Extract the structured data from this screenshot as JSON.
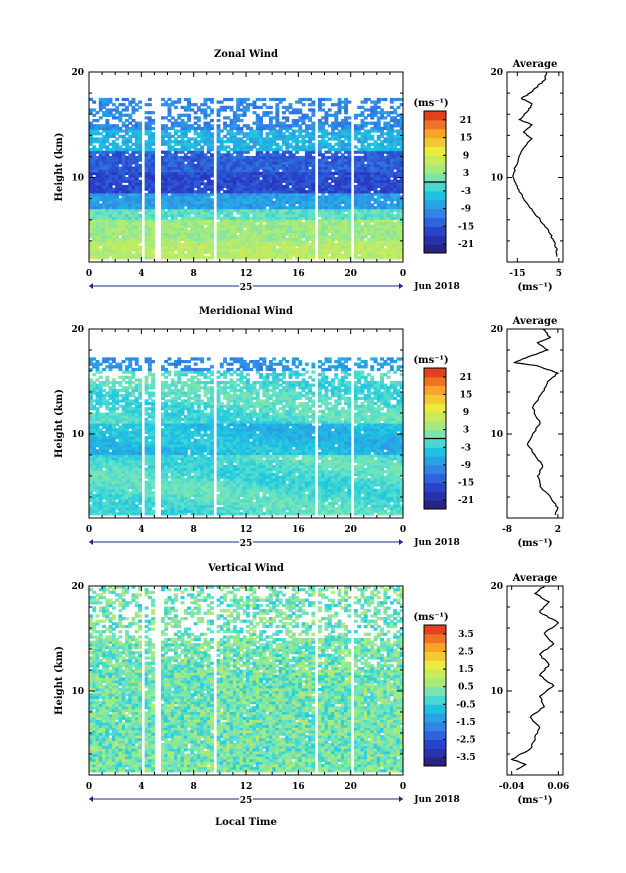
{
  "chart_data": [
    {
      "type": "heatmap",
      "title": "Zonal Wind",
      "ylabel": "Height (km)",
      "xlim": [
        0,
        24
      ],
      "ylim": [
        2,
        20
      ],
      "x_ticks": [
        "0",
        "4",
        "8",
        "12",
        "16",
        "20",
        "0"
      ],
      "y_ticks": [
        "10",
        "20"
      ],
      "date_day": "25",
      "date_month": "Jun 2018",
      "colorbar": {
        "unit": "(ms⁻¹)",
        "ticks": [
          "21",
          "15",
          "9",
          "3",
          "-3",
          "-9",
          "-15",
          "-21"
        ],
        "range": [
          -24,
          24
        ],
        "marker": 0
      },
      "average": {
        "title": "Average",
        "xlabel": "(ms⁻¹)",
        "x_ticks": [
          "-15",
          "5"
        ],
        "xlim": [
          -20,
          7
        ],
        "profile": [
          [
            4.0,
            2.5
          ],
          [
            4.0,
            3.3
          ],
          [
            2.5,
            4.0
          ],
          [
            0.0,
            5.0
          ],
          [
            -4.0,
            6.0
          ],
          [
            -8.0,
            7.0
          ],
          [
            -12.0,
            8.0
          ],
          [
            -15.0,
            9.0
          ],
          [
            -17.0,
            10.0
          ],
          [
            -16.0,
            11.0
          ],
          [
            -13.0,
            12.5
          ],
          [
            -8.0,
            13.7
          ],
          [
            -12.0,
            14.3
          ],
          [
            -8.0,
            15.0
          ],
          [
            -14.0,
            15.5
          ],
          [
            -10.0,
            16.3
          ],
          [
            -8.0,
            17.0
          ],
          [
            -13.0,
            17.5
          ],
          [
            -9.0,
            18.0
          ],
          [
            -6.0,
            18.5
          ],
          [
            -2.0,
            19.2
          ],
          [
            -1.0,
            20.0
          ]
        ]
      },
      "field": "zonal"
    },
    {
      "type": "heatmap",
      "title": "Meridional Wind",
      "ylabel": "Height (km)",
      "xlim": [
        0,
        24
      ],
      "ylim": [
        2,
        20
      ],
      "x_ticks": [
        "0",
        "4",
        "8",
        "12",
        "16",
        "20",
        "0"
      ],
      "y_ticks": [
        "10",
        "20"
      ],
      "date_day": "25",
      "date_month": "Jun 2018",
      "colorbar": {
        "unit": "(ms⁻¹)",
        "ticks": [
          "21",
          "15",
          "9",
          "3",
          "-3",
          "-9",
          "-15",
          "-21"
        ],
        "range": [
          -24,
          24
        ],
        "marker": 0
      },
      "average": {
        "title": "Average",
        "xlabel": "(ms⁻¹)",
        "x_ticks": [
          "-8",
          "2"
        ],
        "xlim": [
          -8,
          3
        ],
        "profile": [
          [
            1.5,
            2.3
          ],
          [
            2.0,
            3.0
          ],
          [
            0.5,
            4.0
          ],
          [
            -1.5,
            5.0
          ],
          [
            -2.0,
            6.0
          ],
          [
            -1.0,
            7.0
          ],
          [
            -2.5,
            8.0
          ],
          [
            -4.0,
            9.0
          ],
          [
            -3.0,
            10.0
          ],
          [
            -1.5,
            11.0
          ],
          [
            -3.0,
            12.5
          ],
          [
            -1.0,
            14.0
          ],
          [
            0.0,
            15.0
          ],
          [
            2.0,
            15.8
          ],
          [
            -2.0,
            16.5
          ],
          [
            -6.5,
            16.8
          ],
          [
            -3.0,
            17.5
          ],
          [
            0.0,
            18.0
          ],
          [
            -2.0,
            18.7
          ],
          [
            0.5,
            19.2
          ],
          [
            -1.0,
            20.0
          ]
        ]
      },
      "field": "meridional"
    },
    {
      "type": "heatmap",
      "title": "Vertical Wind",
      "ylabel": "Height (km)",
      "xlabel": "Local Time",
      "xlim": [
        0,
        24
      ],
      "ylim": [
        2,
        20
      ],
      "x_ticks": [
        "0",
        "4",
        "8",
        "12",
        "16",
        "20",
        "0"
      ],
      "y_ticks": [
        "10",
        "20"
      ],
      "date_day": "25",
      "date_month": "Jun 2018",
      "colorbar": {
        "unit": "(ms⁻¹)",
        "ticks": [
          "3.5",
          "2.5",
          "1.5",
          "0.5",
          "-0.5",
          "-1.5",
          "-2.5",
          "-3.5"
        ],
        "range": [
          -4,
          4
        ]
      },
      "average": {
        "title": "Average",
        "xlabel": "(ms⁻¹)",
        "x_ticks": [
          "-0.04",
          "0.06"
        ],
        "xlim": [
          -0.05,
          0.07
        ],
        "profile": [
          [
            -0.03,
            2.5
          ],
          [
            -0.01,
            3.0
          ],
          [
            -0.04,
            3.5
          ],
          [
            0.0,
            4.5
          ],
          [
            0.01,
            5.5
          ],
          [
            0.02,
            6.5
          ],
          [
            0.0,
            7.5
          ],
          [
            0.03,
            8.5
          ],
          [
            0.02,
            9.5
          ],
          [
            0.05,
            10.5
          ],
          [
            0.02,
            11.5
          ],
          [
            0.04,
            12.5
          ],
          [
            0.02,
            13.5
          ],
          [
            0.05,
            14.5
          ],
          [
            0.03,
            15.5
          ],
          [
            0.06,
            16.5
          ],
          [
            0.02,
            17.5
          ],
          [
            0.04,
            18.5
          ],
          [
            0.01,
            19.3
          ],
          [
            0.03,
            20.0
          ]
        ]
      },
      "field": "vertical"
    }
  ]
}
